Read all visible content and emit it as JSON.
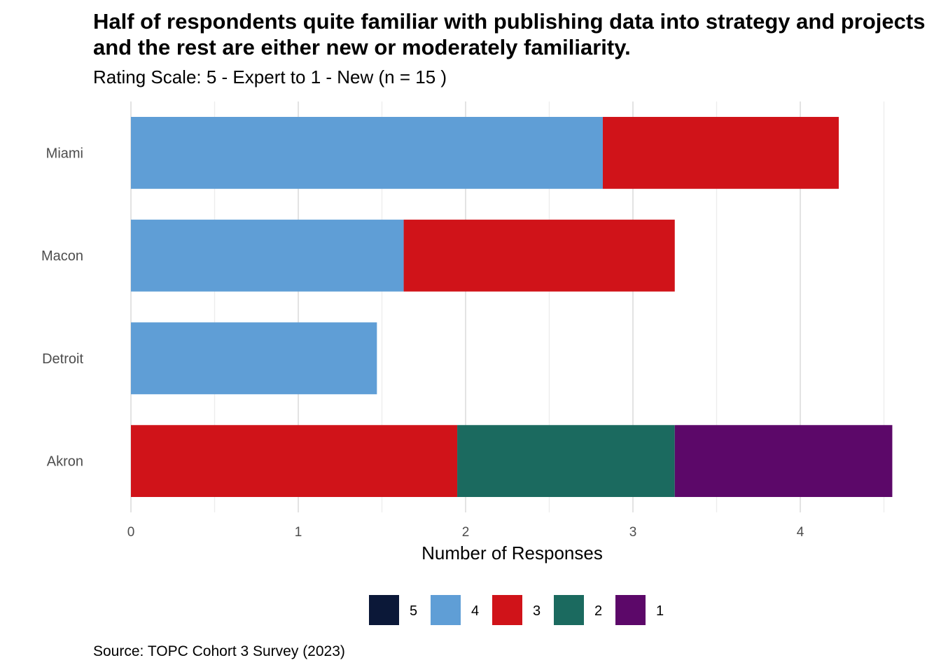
{
  "chart_data": {
    "type": "bar",
    "orientation": "horizontal",
    "stacked": true,
    "title": "Half of respondents quite familiar with publishing data into strategy and projects and the rest are either new or moderately familiarity.",
    "subtitle": "Rating Scale: 5 - Expert to 1 - New (n = 15 )",
    "caption": "Source: TOPC Cohort 3 Survey (2023)",
    "xlabel": "Number of Responses",
    "ylabel": "",
    "xlim": [
      0,
      4.5
    ],
    "xticks": [
      "0",
      "1",
      "2",
      "3",
      "4"
    ],
    "categories": [
      "Miami",
      "Macon",
      "Detroit",
      "Akron"
    ],
    "series": [
      {
        "name": "5",
        "color": "#0b1838",
        "values": [
          0,
          0,
          0,
          0
        ]
      },
      {
        "name": "4",
        "color": "#5f9ed6",
        "values": [
          2.82,
          1.63,
          1.47,
          0
        ]
      },
      {
        "name": "3",
        "color": "#d01319",
        "values": [
          1.41,
          1.62,
          0,
          1.95
        ]
      },
      {
        "name": "2",
        "color": "#1b6a5f",
        "values": [
          0,
          0,
          0,
          1.3
        ]
      },
      {
        "name": "1",
        "color": "#5c0869",
        "values": [
          0,
          0,
          0,
          1.3
        ]
      }
    ],
    "grid": true,
    "legend_position": "bottom"
  }
}
